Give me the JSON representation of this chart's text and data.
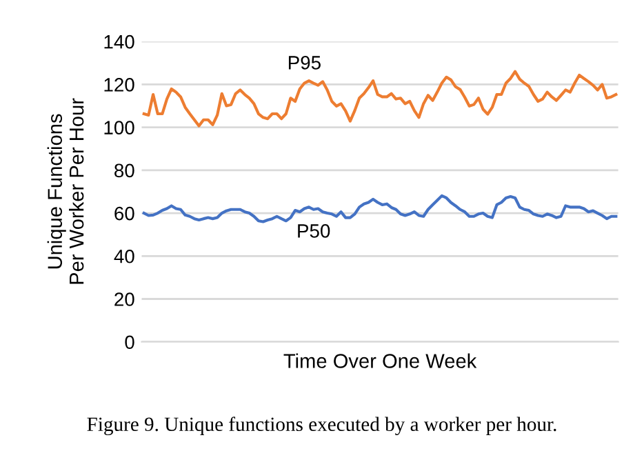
{
  "chart_data": {
    "type": "line",
    "xlabel": "Time Over One Week",
    "ylabel": "Unique Functions\nPer Worker Per Hour",
    "categories": [
      null,
      null,
      null,
      null,
      null,
      null,
      null,
      null,
      null,
      null,
      null,
      null,
      null,
      null,
      null,
      null,
      null,
      null,
      null,
      null,
      null,
      null,
      null,
      null,
      null,
      null,
      null,
      null,
      null,
      null,
      null,
      null,
      null,
      null,
      null,
      null,
      null,
      null,
      null,
      null,
      null,
      null,
      null,
      null,
      null,
      null,
      null,
      null,
      null,
      null,
      null,
      null,
      null,
      null,
      null,
      null,
      null,
      null,
      null,
      null,
      null,
      null,
      null,
      null,
      null,
      null,
      null,
      null,
      null,
      null,
      null,
      null,
      null,
      null,
      null,
      null,
      null,
      null,
      null,
      null,
      null,
      null,
      null,
      null,
      null,
      null,
      null,
      null,
      null,
      null,
      null,
      null,
      null,
      null,
      null,
      null,
      null,
      null,
      null,
      null,
      null,
      null,
      null,
      null
    ],
    "series": [
      {
        "name": "P95",
        "color": "#ed7d31",
        "values": [
          106.3,
          105.7,
          115.3,
          106.3,
          106.3,
          113.2,
          117.9,
          116.4,
          114.2,
          109.3,
          106.3,
          103.5,
          100.7,
          103.5,
          103.5,
          101.2,
          105.7,
          115.7,
          110.0,
          110.6,
          115.7,
          117.4,
          115.3,
          113.6,
          111.0,
          106.3,
          104.6,
          104.0,
          106.3,
          106.3,
          104.0,
          106.3,
          113.6,
          112.1,
          117.9,
          120.6,
          121.7,
          120.6,
          119.6,
          121.3,
          117.4,
          112.1,
          109.9,
          111.0,
          107.6,
          102.9,
          107.8,
          113.6,
          115.7,
          118.5,
          121.7,
          115.3,
          114.2,
          114.2,
          115.7,
          113.2,
          113.6,
          111.0,
          112.1,
          107.8,
          104.6,
          111.0,
          114.9,
          112.5,
          116.4,
          120.6,
          123.4,
          122.1,
          118.9,
          117.6,
          114.0,
          109.9,
          110.6,
          113.6,
          108.4,
          106.1,
          109.3,
          115.3,
          115.3,
          120.6,
          122.8,
          126.0,
          122.4,
          120.6,
          119.1,
          115.3,
          112.1,
          113.2,
          116.4,
          114.2,
          112.5,
          114.9,
          117.4,
          116.4,
          120.6,
          124.3,
          122.8,
          121.3,
          119.6,
          117.4,
          120.0,
          113.6,
          114.2,
          115.3
        ]
      },
      {
        "name": "P50",
        "color": "#4472c4",
        "values": [
          60.0,
          58.9,
          59.1,
          60.0,
          61.3,
          62.1,
          63.4,
          62.1,
          61.7,
          59.1,
          58.5,
          57.4,
          56.8,
          57.4,
          57.9,
          57.4,
          57.9,
          60.0,
          61.1,
          61.7,
          61.7,
          61.7,
          60.6,
          60.0,
          58.5,
          56.4,
          56.0,
          56.8,
          57.4,
          58.5,
          57.4,
          56.4,
          57.9,
          61.3,
          60.6,
          62.1,
          62.8,
          61.7,
          62.1,
          60.6,
          60.0,
          59.6,
          58.5,
          60.6,
          57.9,
          57.9,
          59.6,
          62.8,
          64.3,
          65.0,
          66.5,
          65.0,
          63.9,
          64.3,
          62.6,
          61.7,
          59.6,
          58.9,
          59.6,
          60.6,
          58.9,
          58.5,
          61.7,
          63.9,
          66.0,
          68.1,
          67.1,
          64.9,
          63.4,
          61.7,
          60.6,
          58.5,
          58.5,
          59.6,
          60.0,
          58.5,
          57.9,
          63.9,
          65.0,
          67.1,
          67.7,
          67.1,
          62.8,
          61.7,
          61.3,
          59.6,
          58.9,
          58.5,
          59.6,
          58.9,
          57.9,
          58.5,
          63.4,
          62.8,
          62.8,
          62.8,
          62.1,
          60.6,
          61.1,
          60.0,
          58.9,
          57.4,
          58.5,
          58.5
        ]
      }
    ],
    "ylim": [
      0,
      140
    ],
    "yticks": [
      0,
      20,
      40,
      60,
      80,
      100,
      120,
      140
    ],
    "grid": "y",
    "legend": false,
    "tick_labels": "y",
    "annotations": [
      "Figure 9. Unique functions executed by a worker per hour."
    ]
  }
}
